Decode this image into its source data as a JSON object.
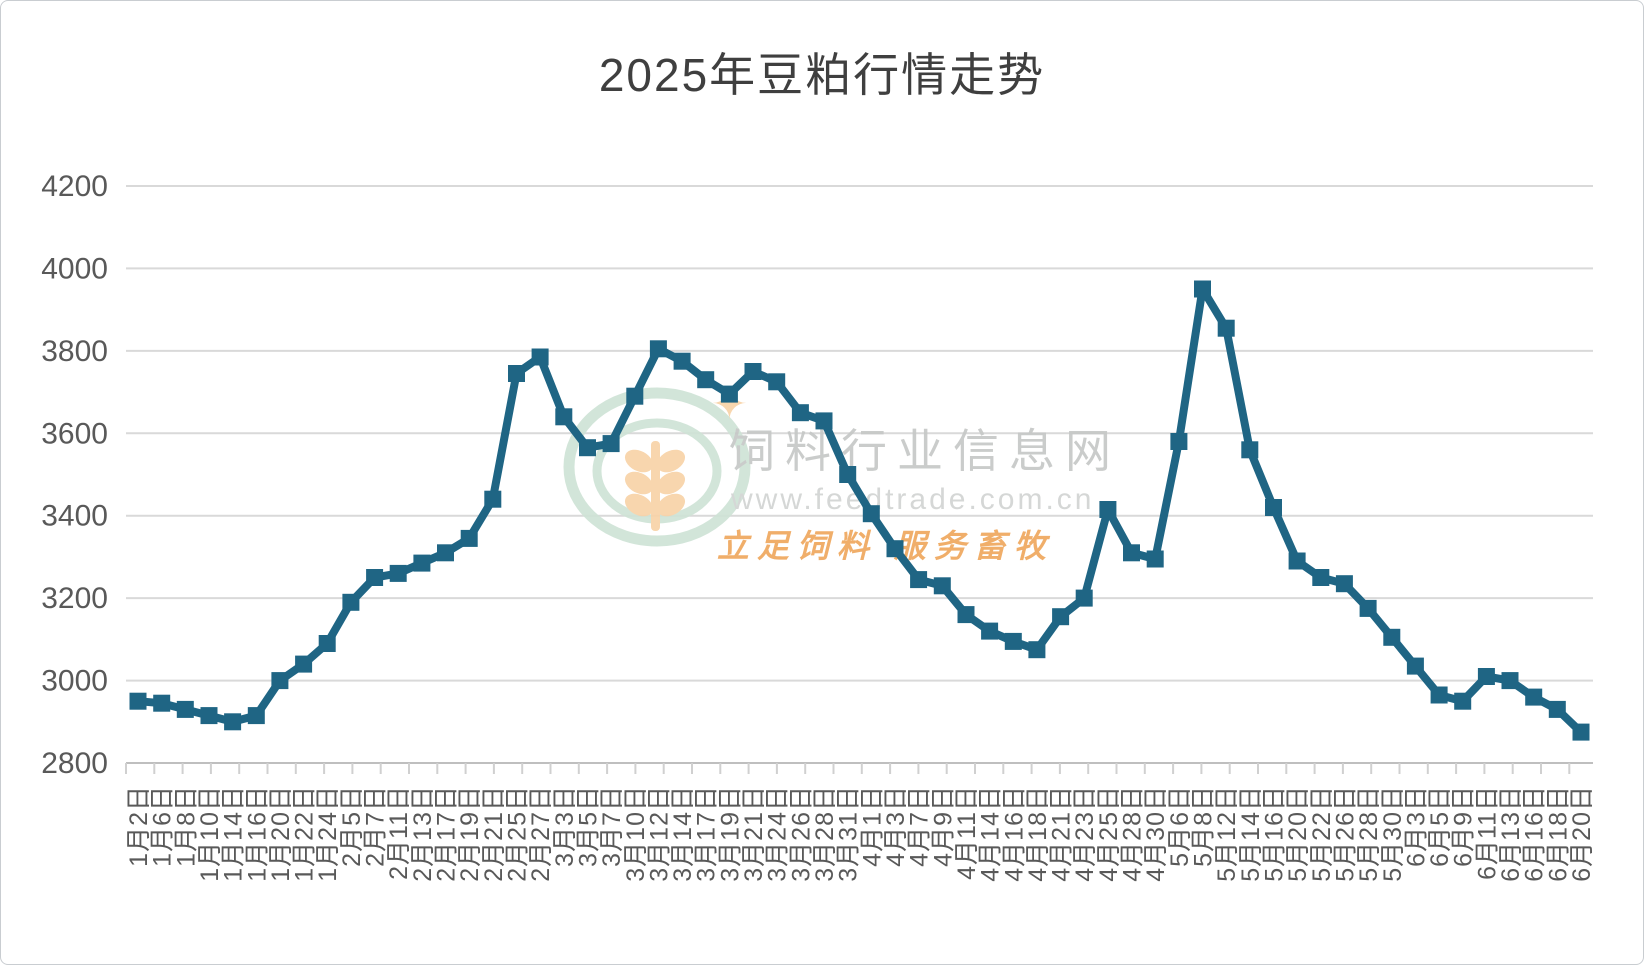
{
  "title": "2025年豆粕行情走势",
  "colors": {
    "series": "#1f6584",
    "gridline": "#d9d9d9",
    "axis_line": "#bfbfbf",
    "tick": "#d0d0d0",
    "axis_label": "#595959",
    "title_text": "#3f3f3f",
    "watermark_ring": "#cfe3d6",
    "watermark_wheat": "#f8d3a8",
    "watermark_text": "#c6c8c7",
    "watermark_url": "#d2d4d3",
    "watermark_slogan": "#efa85e"
  },
  "watermark": {
    "name": "饲料行业信息网",
    "url": "www.feedtrade.com.cn",
    "slogan": "立足饲料  服务畜牧"
  },
  "chart_data": {
    "type": "line",
    "title": "2025年豆粕行情走势",
    "xlabel": "",
    "ylabel": "",
    "ylim": [
      2800,
      4200
    ],
    "ytick_step": 200,
    "ytick_labels": [
      "2800",
      "3000",
      "3200",
      "3400",
      "3600",
      "3800",
      "4000",
      "4200"
    ],
    "grid": true,
    "legend_position": "none",
    "marker": "square",
    "categories": [
      "1月2日",
      "1月6日",
      "1月8日",
      "1月10日",
      "1月14日",
      "1月16日",
      "1月20日",
      "1月22日",
      "1月24日",
      "2月5日",
      "2月7日",
      "2月11日",
      "2月13日",
      "2月17日",
      "2月19日",
      "2月21日",
      "2月25日",
      "2月27日",
      "3月3日",
      "3月5日",
      "3月7日",
      "3月10日",
      "3月12日",
      "3月14日",
      "3月17日",
      "3月19日",
      "3月21日",
      "3月24日",
      "3月26日",
      "3月28日",
      "3月31日",
      "4月1日",
      "4月3日",
      "4月7日",
      "4月9日",
      "4月11日",
      "4月14日",
      "4月16日",
      "4月18日",
      "4月21日",
      "4月23日",
      "4月25日",
      "4月28日",
      "4月30日",
      "5月6日",
      "5月8日",
      "5月12日",
      "5月14日",
      "5月16日",
      "5月20日",
      "5月22日",
      "5月26日",
      "5月28日",
      "5月30日",
      "6月3日",
      "6月5日",
      "6月9日",
      "6月11日",
      "6月13日",
      "6月16日",
      "6月18日",
      "6月20日"
    ],
    "values": [
      2950,
      2945,
      2930,
      2915,
      2900,
      2915,
      3000,
      3040,
      3090,
      3190,
      3250,
      3260,
      3285,
      3310,
      3345,
      3440,
      3745,
      3785,
      3640,
      3565,
      3575,
      3690,
      3805,
      3775,
      3730,
      3695,
      3750,
      3725,
      3650,
      3630,
      3500,
      3405,
      3320,
      3245,
      3230,
      3160,
      3120,
      3095,
      3075,
      3155,
      3200,
      3415,
      3310,
      3295,
      3580,
      3950,
      3855,
      3560,
      3420,
      3290,
      3250,
      3235,
      3175,
      3105,
      3035,
      2965,
      2950,
      3010,
      3000,
      2960,
      2930,
      2875
    ]
  }
}
